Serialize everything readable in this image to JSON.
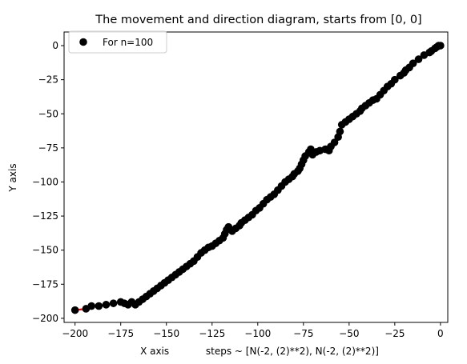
{
  "chart_data": {
    "type": "scatter",
    "title": "The movement and direction diagram, starts from [0, 0]",
    "xlabel": "X axis            steps ~ [N(-2, (2)**2), N(-2, (2)**2)]",
    "ylabel": "Y axis",
    "xlim": [
      -206,
      4
    ],
    "ylim": [
      -203,
      10
    ],
    "xticks": [
      -200,
      -175,
      -150,
      -125,
      -100,
      -75,
      -50,
      -25,
      0
    ],
    "yticks": [
      0,
      -25,
      -50,
      -75,
      -100,
      -125,
      -150,
      -175,
      -200
    ],
    "xtick_labels": [
      "−200",
      "−175",
      "−150",
      "−125",
      "−100",
      "−75",
      "−50",
      "−25",
      "0"
    ],
    "ytick_labels": [
      "0",
      "−25",
      "−50",
      "−75",
      "−100",
      "−125",
      "−150",
      "−175",
      "−200"
    ],
    "grid": false,
    "legend_position": "upper-left",
    "series": [
      {
        "name": "For n=100",
        "marker_color": "#000000",
        "line_color": "#ff0000",
        "x": [
          0,
          -1,
          -2,
          -3,
          -5,
          -6,
          -9,
          -12,
          -15,
          -17,
          -19,
          -20,
          -22,
          -25,
          -27,
          -29,
          -31,
          -33,
          -35,
          -37,
          -39,
          -41,
          -43,
          -44,
          -46,
          -48,
          -50,
          -52,
          -54,
          -55,
          -56,
          -58,
          -60,
          -61,
          -63,
          -66,
          -68,
          -70,
          -71,
          -72,
          -74,
          -75,
          -76,
          -77,
          -78,
          -80,
          -81,
          -83,
          -85,
          -87,
          -89,
          -91,
          -93,
          -95,
          -97,
          -99,
          -101,
          -103,
          -105,
          -107,
          -109,
          -110,
          -112,
          -114,
          -116,
          -117,
          -118,
          -119,
          -121,
          -123,
          -125,
          -127,
          -129,
          -131,
          -133,
          -135,
          -137,
          -139,
          -141,
          -143,
          -145,
          -147,
          -149,
          -151,
          -153,
          -155,
          -157,
          -159,
          -161,
          -163,
          -165,
          -167,
          -169,
          -171,
          -173,
          -175,
          -179,
          -183,
          -187,
          -191,
          -194,
          -200
        ],
        "y": [
          0,
          0,
          -1,
          -2,
          -4,
          -5,
          -7,
          -10,
          -13,
          -16,
          -18,
          -20,
          -22,
          -25,
          -28,
          -30,
          -33,
          -36,
          -39,
          -40,
          -42,
          -44,
          -46,
          -48,
          -50,
          -52,
          -54,
          -56,
          -58,
          -63,
          -67,
          -71,
          -74,
          -77,
          -76,
          -77,
          -78,
          -80,
          -76,
          -78,
          -81,
          -84,
          -87,
          -90,
          -92,
          -94,
          -96,
          -98,
          -100,
          -103,
          -106,
          -109,
          -111,
          -113,
          -116,
          -119,
          -121,
          -124,
          -126,
          -128,
          -130,
          -132,
          -134,
          -136,
          -133,
          -135,
          -138,
          -141,
          -143,
          -145,
          -147,
          -148,
          -150,
          -152,
          -155,
          -158,
          -160,
          -162,
          -164,
          -166,
          -168,
          -170,
          -172,
          -174,
          -176,
          -178,
          -180,
          -182,
          -184,
          -186,
          -188,
          -190,
          -188,
          -190,
          -189,
          -188,
          -189,
          -190,
          -191,
          -191,
          -193,
          -194
        ]
      }
    ]
  }
}
